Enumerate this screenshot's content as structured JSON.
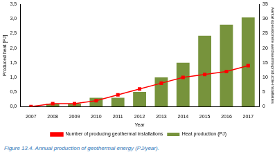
{
  "chart_data": {
    "type": "bar",
    "categories": [
      "2007",
      "2008",
      "2009",
      "2010",
      "2011",
      "2012",
      "2013",
      "2014",
      "2015",
      "2016",
      "2017"
    ],
    "x_label": "Year",
    "y_label": "Produced heat [PJ]",
    "y2_label": "Aantal operationele aardwarmteproductie-installaties",
    "series": [
      {
        "name": "Heat production (PJ)",
        "type": "bar",
        "color": "#77933c",
        "values": [
          0,
          0.1,
          0.1,
          0.3,
          0.3,
          0.5,
          1.0,
          1.5,
          2.42,
          2.8,
          3.05
        ]
      },
      {
        "name": "Number of producing geothermal installations",
        "type": "line",
        "color": "#ff0000",
        "marker": "square",
        "axis": "y2",
        "values": [
          0,
          1,
          1,
          2,
          4,
          6,
          8,
          10,
          11,
          12,
          14
        ]
      }
    ],
    "ylim": [
      0,
      3.5
    ],
    "yticks": [
      {
        "value": 0,
        "label": "0,0"
      },
      {
        "value": 0.5,
        "label": "0,5"
      },
      {
        "value": 1,
        "label": "1,0"
      },
      {
        "value": 1.5,
        "label": "1,5"
      },
      {
        "value": 2,
        "label": "2,0"
      },
      {
        "value": 2.5,
        "label": "2,5"
      },
      {
        "value": 3,
        "label": "3,0"
      },
      {
        "value": 3.5,
        "label": "3,5"
      }
    ],
    "y2lim": [
      0,
      35
    ],
    "y2ticks": [
      0,
      5,
      10,
      15,
      20,
      25,
      30,
      35
    ],
    "grid": false,
    "legend": "bottom"
  },
  "caption": "Figure 13.4. Annual production of geothermal energy (PJ/year)."
}
